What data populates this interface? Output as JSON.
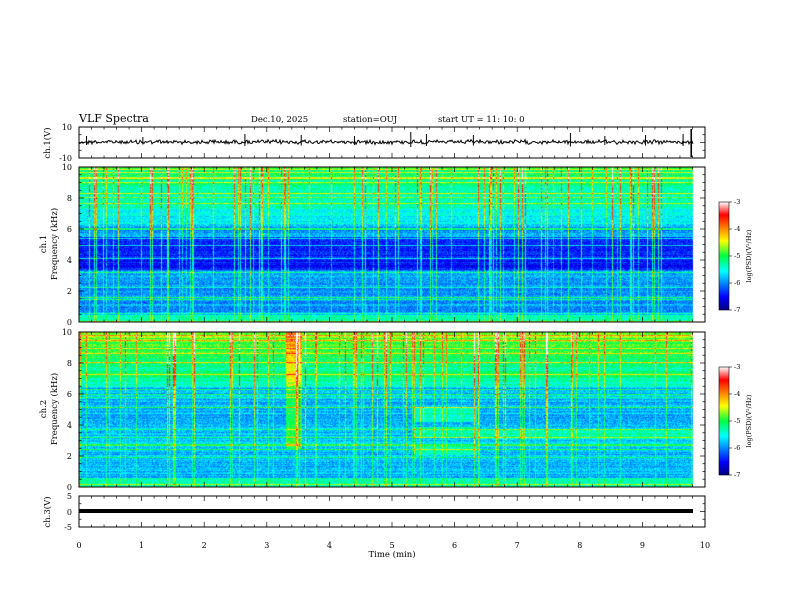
{
  "header": {
    "title": "VLF Spectra",
    "date": "Dec.10, 2025",
    "station": "station=OUJ",
    "start": "start  UT  =   11: 10: 0"
  },
  "chart_data": [
    {
      "type": "line",
      "name": "ch1-waveform",
      "ylabel": "ch.1(V)",
      "ylim": [
        -10,
        10
      ],
      "ytick_labels": [
        "10",
        "-10"
      ],
      "baseline_value": 0
    },
    {
      "type": "heatmap",
      "name": "ch1-spectrogram",
      "ylabel_line1": "ch.1",
      "ylabel_line2": "Frequency  (kHz)",
      "ylim": [
        0,
        10
      ],
      "yticks": [
        "0",
        "2",
        "4",
        "6",
        "8",
        "10"
      ],
      "colorbar": {
        "label": "log(PSD)(V²/Hz)",
        "ticks": [
          "-3",
          "-4",
          "-5",
          "-6",
          "-7"
        ],
        "range": [
          -7,
          -3
        ]
      }
    },
    {
      "type": "heatmap",
      "name": "ch2-spectrogram",
      "ylabel_line1": "ch.2",
      "ylabel_line2": "Frequency  (kHz)",
      "ylim": [
        0,
        10
      ],
      "yticks": [
        "0",
        "2",
        "4",
        "6",
        "8",
        "10"
      ],
      "colorbar": {
        "label": "log(PSD)(V²/Hz)",
        "ticks": [
          "-3",
          "-4",
          "-5",
          "-6",
          "-7"
        ],
        "range": [
          -7,
          -3
        ]
      }
    },
    {
      "type": "line",
      "name": "ch3-waveform",
      "ylabel": "ch.3(V)",
      "ylim": [
        -5,
        5
      ],
      "ytick_labels": [
        "5",
        "0",
        "-5"
      ],
      "baseline_value": 0
    }
  ],
  "xaxis": {
    "label": "Time  (min)",
    "xlim": [
      0,
      10
    ],
    "ticks": [
      "0",
      "1",
      "2",
      "3",
      "4",
      "5",
      "6",
      "7",
      "8",
      "9",
      "10"
    ]
  }
}
